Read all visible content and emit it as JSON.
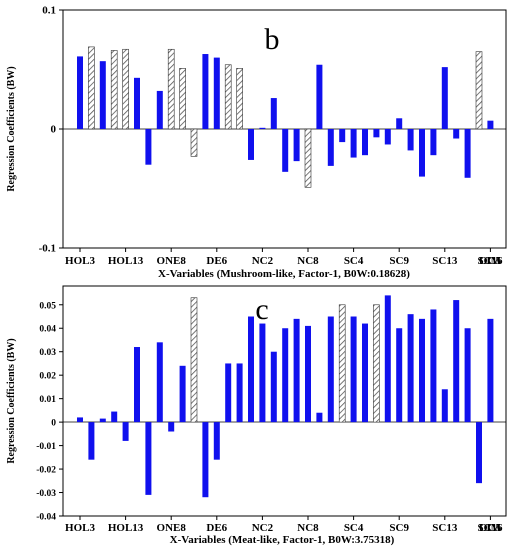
{
  "chart_data": [
    {
      "type": "bar",
      "panel_letter": "b",
      "ylabel": "Regression Coefficients (BW)",
      "xlabel": "X-Variables (Mushroom-like, Factor-1, B0W:0.18628)",
      "ylim": [
        -0.1,
        0.1
      ],
      "yticks": [
        "0.1",
        "0",
        "-0.1"
      ],
      "ytick_values": [
        0.1,
        0,
        -0.1
      ],
      "xtick_labels": [
        "HOL3",
        "HOL13",
        "ONE8",
        "DE6",
        "NC2",
        "NC8",
        "SC4",
        "SC9",
        "SC13",
        "SC16",
        "OC5",
        "LIM"
      ],
      "xtick_positions": [
        1,
        5,
        9,
        13,
        17,
        21,
        25,
        29,
        33,
        37,
        41,
        45
      ],
      "grid": false,
      "legend": "none",
      "colors": {
        "solid": "#1010ee",
        "hatched": "#808080"
      },
      "bars": [
        {
          "x": 1,
          "value": 0.061,
          "style": "solid"
        },
        {
          "x": 2,
          "value": 0.069,
          "style": "hatched"
        },
        {
          "x": 3,
          "value": 0.057,
          "style": "solid"
        },
        {
          "x": 4,
          "value": 0.066,
          "style": "hatched"
        },
        {
          "x": 5,
          "value": 0.067,
          "style": "hatched"
        },
        {
          "x": 6,
          "value": 0.043,
          "style": "solid"
        },
        {
          "x": 7,
          "value": -0.03,
          "style": "solid"
        },
        {
          "x": 8,
          "value": 0.032,
          "style": "solid"
        },
        {
          "x": 9,
          "value": 0.067,
          "style": "hatched"
        },
        {
          "x": 10,
          "value": 0.051,
          "style": "hatched"
        },
        {
          "x": 11,
          "value": -0.023,
          "style": "hatched"
        },
        {
          "x": 12,
          "value": 0.063,
          "style": "solid"
        },
        {
          "x": 13,
          "value": 0.06,
          "style": "solid"
        },
        {
          "x": 14,
          "value": 0.054,
          "style": "hatched"
        },
        {
          "x": 15,
          "value": 0.051,
          "style": "hatched"
        },
        {
          "x": 16,
          "value": -0.026,
          "style": "solid"
        },
        {
          "x": 17,
          "value": 0.001,
          "style": "solid"
        },
        {
          "x": 18,
          "value": 0.026,
          "style": "solid"
        },
        {
          "x": 19,
          "value": -0.036,
          "style": "solid"
        },
        {
          "x": 20,
          "value": -0.027,
          "style": "solid"
        },
        {
          "x": 21,
          "value": -0.049,
          "style": "hatched"
        },
        {
          "x": 22,
          "value": 0.054,
          "style": "solid"
        },
        {
          "x": 23,
          "value": -0.031,
          "style": "solid"
        },
        {
          "x": 24,
          "value": -0.011,
          "style": "solid"
        },
        {
          "x": 25,
          "value": -0.024,
          "style": "solid"
        },
        {
          "x": 26,
          "value": -0.022,
          "style": "solid"
        },
        {
          "x": 27,
          "value": -0.007,
          "style": "solid"
        },
        {
          "x": 28,
          "value": -0.013,
          "style": "solid"
        },
        {
          "x": 29,
          "value": 0.009,
          "style": "solid"
        },
        {
          "x": 30,
          "value": -0.018,
          "style": "solid"
        },
        {
          "x": 31,
          "value": -0.04,
          "style": "solid"
        },
        {
          "x": 32,
          "value": -0.022,
          "style": "solid"
        },
        {
          "x": 33,
          "value": 0.052,
          "style": "solid"
        },
        {
          "x": 34,
          "value": -0.008,
          "style": "solid"
        },
        {
          "x": 35,
          "value": -0.041,
          "style": "solid"
        },
        {
          "x": 36,
          "value": 0.065,
          "style": "hatched"
        },
        {
          "x": 37,
          "value": 0.007,
          "style": "solid"
        }
      ]
    },
    {
      "type": "bar",
      "panel_letter": "c",
      "ylabel": "Regression Coefficients (BW)",
      "xlabel": "X-Variables (Meat-like, Factor-1, B0W:3.75318)",
      "ylim": [
        -0.04,
        0.058
      ],
      "yticks": [
        "0.05",
        "0.04",
        "0.03",
        "0.02",
        "0.01",
        "0",
        "-0.01",
        "-0.02",
        "-0.03",
        "-0.04"
      ],
      "ytick_values": [
        0.05,
        0.04,
        0.03,
        0.02,
        0.01,
        0,
        -0.01,
        -0.02,
        -0.03,
        -0.04
      ],
      "xtick_labels": [
        "HOL3",
        "HOL13",
        "ONE8",
        "DE6",
        "NC2",
        "NC8",
        "SC4",
        "SC9",
        "SC13",
        "SC16",
        "OC5",
        "LIM"
      ],
      "xtick_positions": [
        1,
        5,
        9,
        13,
        17,
        21,
        25,
        29,
        33,
        37,
        41,
        45
      ],
      "grid": false,
      "legend": "none",
      "colors": {
        "solid": "#1010ee",
        "hatched": "#808080"
      },
      "bars": [
        {
          "x": 1,
          "value": 0.002,
          "style": "solid"
        },
        {
          "x": 2,
          "value": -0.016,
          "style": "solid"
        },
        {
          "x": 3,
          "value": 0.0015,
          "style": "solid"
        },
        {
          "x": 4,
          "value": 0.0045,
          "style": "solid"
        },
        {
          "x": 5,
          "value": -0.008,
          "style": "solid"
        },
        {
          "x": 6,
          "value": 0.032,
          "style": "solid"
        },
        {
          "x": 7,
          "value": -0.031,
          "style": "solid"
        },
        {
          "x": 8,
          "value": 0.034,
          "style": "solid"
        },
        {
          "x": 9,
          "value": -0.004,
          "style": "solid"
        },
        {
          "x": 10,
          "value": 0.024,
          "style": "solid"
        },
        {
          "x": 11,
          "value": 0.053,
          "style": "hatched"
        },
        {
          "x": 12,
          "value": -0.032,
          "style": "solid"
        },
        {
          "x": 13,
          "value": -0.016,
          "style": "solid"
        },
        {
          "x": 14,
          "value": 0.025,
          "style": "solid"
        },
        {
          "x": 15,
          "value": 0.025,
          "style": "solid"
        },
        {
          "x": 16,
          "value": 0.045,
          "style": "solid"
        },
        {
          "x": 17,
          "value": 0.042,
          "style": "solid"
        },
        {
          "x": 18,
          "value": 0.03,
          "style": "solid"
        },
        {
          "x": 19,
          "value": 0.04,
          "style": "solid"
        },
        {
          "x": 20,
          "value": 0.044,
          "style": "solid"
        },
        {
          "x": 21,
          "value": 0.041,
          "style": "solid"
        },
        {
          "x": 22,
          "value": 0.004,
          "style": "solid"
        },
        {
          "x": 23,
          "value": 0.045,
          "style": "solid"
        },
        {
          "x": 24,
          "value": 0.05,
          "style": "hatched"
        },
        {
          "x": 25,
          "value": 0.045,
          "style": "solid"
        },
        {
          "x": 26,
          "value": 0.042,
          "style": "solid"
        },
        {
          "x": 27,
          "value": 0.05,
          "style": "hatched"
        },
        {
          "x": 28,
          "value": 0.054,
          "style": "solid"
        },
        {
          "x": 29,
          "value": 0.04,
          "style": "solid"
        },
        {
          "x": 30,
          "value": 0.046,
          "style": "solid"
        },
        {
          "x": 31,
          "value": 0.044,
          "style": "solid"
        },
        {
          "x": 32,
          "value": 0.048,
          "style": "solid"
        },
        {
          "x": 33,
          "value": 0.014,
          "style": "solid"
        },
        {
          "x": 34,
          "value": 0.052,
          "style": "solid"
        },
        {
          "x": 35,
          "value": 0.04,
          "style": "solid"
        },
        {
          "x": 36,
          "value": -0.026,
          "style": "solid"
        },
        {
          "x": 37,
          "value": 0.044,
          "style": "solid"
        }
      ]
    }
  ]
}
